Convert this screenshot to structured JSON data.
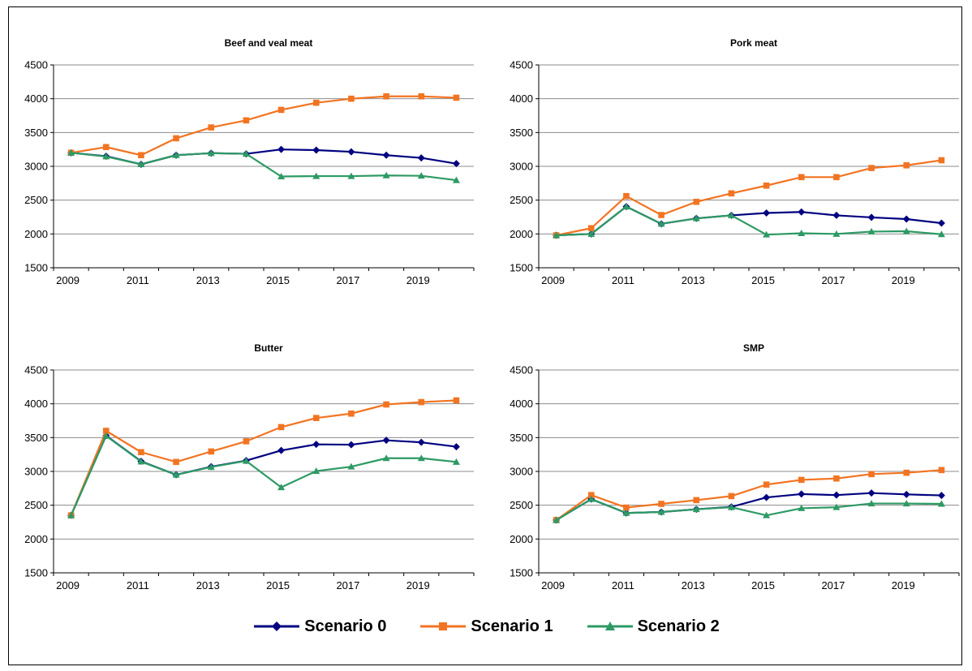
{
  "figure": {},
  "legend": {
    "items": [
      {
        "label": "Scenario 0",
        "color": "#000080",
        "marker": "diamond"
      },
      {
        "label": "Scenario 1",
        "color": "#f27422",
        "marker": "square"
      },
      {
        "label": "Scenario 2",
        "color": "#2d9a64",
        "marker": "triangle"
      }
    ]
  },
  "chart_data": [
    {
      "type": "line",
      "title": "Beef and veal meat",
      "xlabel": "",
      "ylabel": "",
      "x": [
        2009,
        2010,
        2011,
        2012,
        2013,
        2014,
        2015,
        2016,
        2017,
        2018,
        2019,
        2020
      ],
      "x_tick_labels": [
        "2009",
        "2011",
        "2013",
        "2015",
        "2017",
        "2019"
      ],
      "ylim": [
        1500,
        4500
      ],
      "y_ticks": [
        1500,
        2000,
        2500,
        3000,
        3500,
        4000,
        4500
      ],
      "grid": "horizontal",
      "legend_position": "bottom",
      "series": [
        {
          "name": "Scenario 0",
          "color": "#000080",
          "marker": "diamond",
          "values": [
            3200,
            3150,
            3030,
            3165,
            3195,
            3185,
            3250,
            3240,
            3215,
            3165,
            3125,
            3040
          ]
        },
        {
          "name": "Scenario 1",
          "color": "#f27422",
          "marker": "square",
          "values": [
            3200,
            3285,
            3165,
            3415,
            3575,
            3680,
            3835,
            3940,
            4000,
            4035,
            4035,
            4015
          ]
        },
        {
          "name": "Scenario 2",
          "color": "#2d9a64",
          "marker": "triangle",
          "values": [
            3200,
            3145,
            3030,
            3165,
            3195,
            3185,
            2850,
            2855,
            2855,
            2865,
            2860,
            2795
          ]
        }
      ]
    },
    {
      "type": "line",
      "title": "Pork meat",
      "xlabel": "",
      "ylabel": "",
      "x": [
        2009,
        2010,
        2011,
        2012,
        2013,
        2014,
        2015,
        2016,
        2017,
        2018,
        2019,
        2020
      ],
      "x_tick_labels": [
        "2009",
        "2011",
        "2013",
        "2015",
        "2017",
        "2019"
      ],
      "ylim": [
        1500,
        4500
      ],
      "y_ticks": [
        1500,
        2000,
        2500,
        3000,
        3500,
        4000,
        4500
      ],
      "grid": "horizontal",
      "legend_position": "bottom",
      "series": [
        {
          "name": "Scenario 0",
          "color": "#000080",
          "marker": "diamond",
          "values": [
            1980,
            2000,
            2405,
            2150,
            2230,
            2275,
            2310,
            2325,
            2275,
            2245,
            2220,
            2160
          ]
        },
        {
          "name": "Scenario 1",
          "color": "#f27422",
          "marker": "square",
          "values": [
            1980,
            2085,
            2560,
            2280,
            2475,
            2600,
            2715,
            2840,
            2840,
            2975,
            3015,
            3090
          ]
        },
        {
          "name": "Scenario 2",
          "color": "#2d9a64",
          "marker": "triangle",
          "values": [
            1980,
            2000,
            2405,
            2150,
            2230,
            2275,
            1990,
            2010,
            2000,
            2035,
            2040,
            1995
          ]
        }
      ]
    },
    {
      "type": "line",
      "title": "Butter",
      "xlabel": "",
      "ylabel": "",
      "x": [
        2009,
        2010,
        2011,
        2012,
        2013,
        2014,
        2015,
        2016,
        2017,
        2018,
        2019,
        2020
      ],
      "x_tick_labels": [
        "2009",
        "2011",
        "2013",
        "2015",
        "2017",
        "2019"
      ],
      "ylim": [
        1500,
        4500
      ],
      "y_ticks": [
        1500,
        2000,
        2500,
        3000,
        3500,
        4000,
        4500
      ],
      "grid": "horizontal",
      "legend_position": "bottom",
      "series": [
        {
          "name": "Scenario 0",
          "color": "#000080",
          "marker": "diamond",
          "values": [
            2350,
            3530,
            3150,
            2950,
            3070,
            3160,
            3310,
            3400,
            3395,
            3460,
            3430,
            3365
          ]
        },
        {
          "name": "Scenario 1",
          "color": "#f27422",
          "marker": "square",
          "values": [
            2350,
            3600,
            3285,
            3140,
            3295,
            3445,
            3655,
            3790,
            3855,
            3990,
            4025,
            4050
          ]
        },
        {
          "name": "Scenario 2",
          "color": "#2d9a64",
          "marker": "triangle",
          "values": [
            2350,
            3525,
            3145,
            2950,
            3065,
            3155,
            2765,
            3005,
            3070,
            3195,
            3195,
            3140
          ]
        }
      ]
    },
    {
      "type": "line",
      "title": "SMP",
      "xlabel": "",
      "ylabel": "",
      "x": [
        2009,
        2010,
        2011,
        2012,
        2013,
        2014,
        2015,
        2016,
        2017,
        2018,
        2019,
        2020
      ],
      "x_tick_labels": [
        "2009",
        "2011",
        "2013",
        "2015",
        "2017",
        "2019"
      ],
      "ylim": [
        1500,
        4500
      ],
      "y_ticks": [
        1500,
        2000,
        2500,
        3000,
        3500,
        4000,
        4500
      ],
      "grid": "horizontal",
      "legend_position": "bottom",
      "series": [
        {
          "name": "Scenario 0",
          "color": "#000080",
          "marker": "diamond",
          "values": [
            2280,
            2590,
            2385,
            2400,
            2440,
            2475,
            2615,
            2665,
            2650,
            2680,
            2660,
            2645
          ]
        },
        {
          "name": "Scenario 1",
          "color": "#f27422",
          "marker": "square",
          "values": [
            2280,
            2650,
            2465,
            2520,
            2575,
            2635,
            2805,
            2875,
            2895,
            2960,
            2980,
            3020
          ]
        },
        {
          "name": "Scenario 2",
          "color": "#2d9a64",
          "marker": "triangle",
          "values": [
            2280,
            2590,
            2385,
            2400,
            2440,
            2470,
            2350,
            2455,
            2470,
            2525,
            2525,
            2520
          ]
        }
      ]
    }
  ]
}
